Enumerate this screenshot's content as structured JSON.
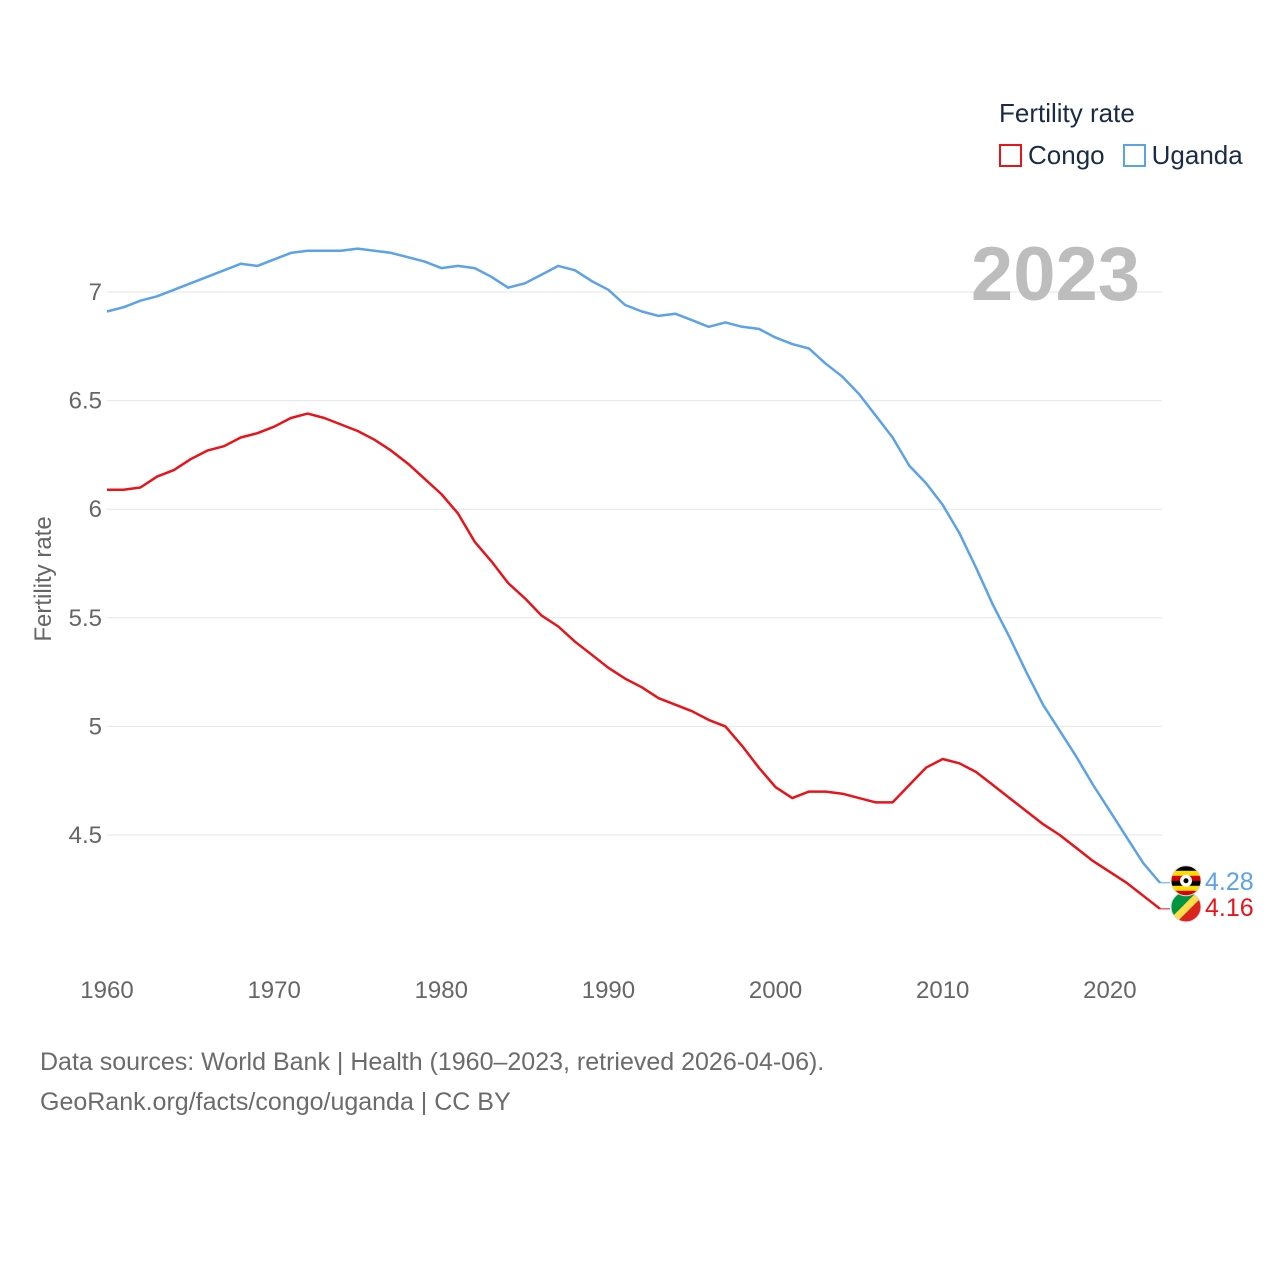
{
  "chart_data": {
    "type": "line",
    "title": "Fertility rate",
    "xlabel": "",
    "ylabel": "Fertility rate",
    "year_label": "2023",
    "xlim": [
      1960,
      2023
    ],
    "ylim": [
      4.0,
      7.4
    ],
    "x_ticks": [
      1960,
      1970,
      1980,
      1990,
      2000,
      2010,
      2020
    ],
    "y_ticks": [
      4.5,
      5,
      5.5,
      6,
      6.5,
      7
    ],
    "y_tick_labels": [
      "4.5",
      "5",
      "5.5",
      "6",
      "6.5",
      "7"
    ],
    "grid": true,
    "legend_position": "top-right",
    "x": [
      1960,
      1961,
      1962,
      1963,
      1964,
      1965,
      1966,
      1967,
      1968,
      1969,
      1970,
      1971,
      1972,
      1973,
      1974,
      1975,
      1976,
      1977,
      1978,
      1979,
      1980,
      1981,
      1982,
      1983,
      1984,
      1985,
      1986,
      1987,
      1988,
      1989,
      1990,
      1991,
      1992,
      1993,
      1994,
      1995,
      1996,
      1997,
      1998,
      1999,
      2000,
      2001,
      2002,
      2003,
      2004,
      2005,
      2006,
      2007,
      2008,
      2009,
      2010,
      2011,
      2012,
      2013,
      2014,
      2015,
      2016,
      2017,
      2018,
      2019,
      2020,
      2021,
      2022,
      2023
    ],
    "series": [
      {
        "name": "Congo",
        "color": "#e8141a",
        "end_label": "4.16",
        "flag": "congo-flag",
        "values": [
          6.09,
          6.09,
          6.1,
          6.15,
          6.18,
          6.23,
          6.27,
          6.29,
          6.33,
          6.35,
          6.38,
          6.42,
          6.44,
          6.42,
          6.39,
          6.36,
          6.32,
          6.27,
          6.21,
          6.14,
          6.07,
          5.98,
          5.85,
          5.76,
          5.66,
          5.59,
          5.51,
          5.46,
          5.39,
          5.33,
          5.27,
          5.22,
          5.18,
          5.13,
          5.1,
          5.07,
          5.03,
          5.0,
          4.91,
          4.81,
          4.72,
          4.67,
          4.7,
          4.7,
          4.69,
          4.67,
          4.65,
          4.65,
          4.73,
          4.81,
          4.85,
          4.83,
          4.79,
          4.73,
          4.67,
          4.61,
          4.55,
          4.5,
          4.44,
          4.38,
          4.33,
          4.28,
          4.22,
          4.16
        ]
      },
      {
        "name": "Uganda",
        "color": "#5ba3e6",
        "end_label": "4.28",
        "flag": "uganda-flag",
        "values": [
          6.91,
          6.93,
          6.96,
          6.98,
          7.01,
          7.04,
          7.07,
          7.1,
          7.13,
          7.12,
          7.15,
          7.18,
          7.19,
          7.19,
          7.19,
          7.2,
          7.19,
          7.18,
          7.16,
          7.14,
          7.11,
          7.12,
          7.11,
          7.07,
          7.02,
          7.04,
          7.08,
          7.12,
          7.1,
          7.05,
          7.01,
          6.94,
          6.91,
          6.89,
          6.9,
          6.87,
          6.84,
          6.86,
          6.84,
          6.83,
          6.79,
          6.76,
          6.74,
          6.67,
          6.61,
          6.53,
          6.43,
          6.33,
          6.2,
          6.12,
          6.02,
          5.89,
          5.73,
          5.56,
          5.41,
          5.25,
          5.1,
          4.98,
          4.86,
          4.73,
          4.61,
          4.49,
          4.37,
          4.28
        ]
      }
    ]
  },
  "footer": {
    "line1": "Data sources: World Bank | Health (1960–2023, retrieved 2026-04-06).",
    "line2": "GeoRank.org/facts/congo/uganda | CC BY"
  }
}
